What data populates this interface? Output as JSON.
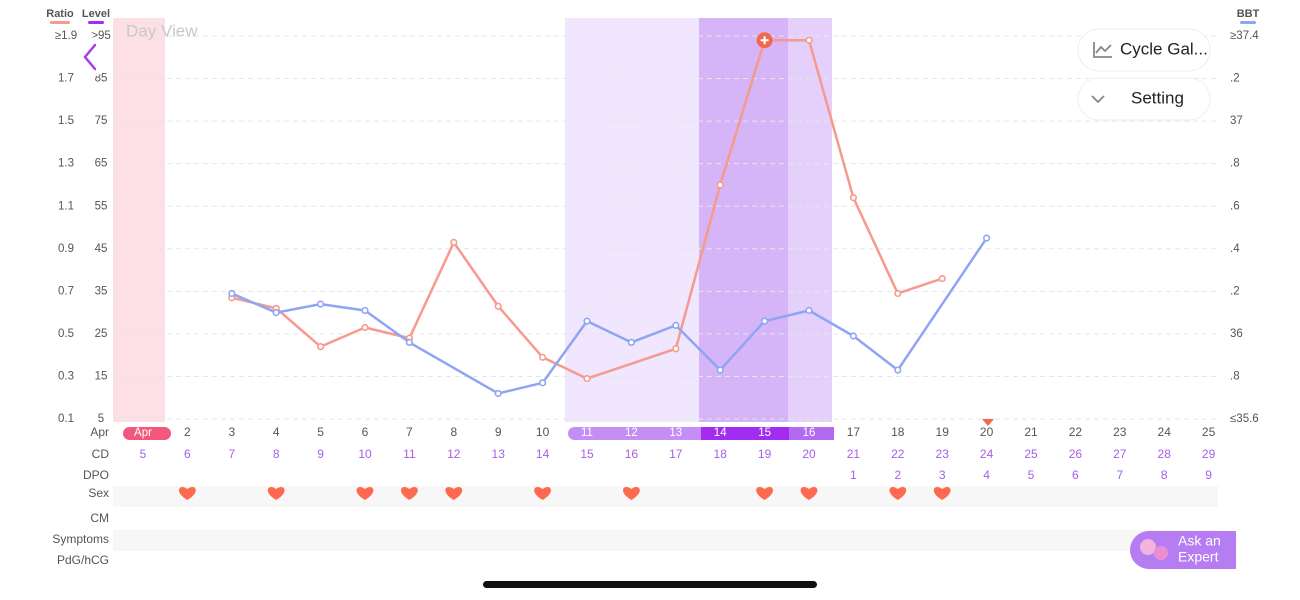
{
  "header": {
    "level_label": "Level",
    "view_label": "Day View"
  },
  "buttons": {
    "gallery": "Cycle Gal...",
    "setting": "Setting"
  },
  "ask_expert": {
    "line1": "Ask an",
    "line2": "Expert"
  },
  "chart_data": {
    "type": "line",
    "xlim": [
      1,
      25
    ],
    "ylim": [
      0.1,
      1.9
    ],
    "yticks": [
      0.1,
      0.3,
      0.5,
      0.7,
      0.9,
      1.1,
      1.3,
      1.5,
      1.7,
      {
        "value": 1.9,
        "label": "≥1.9"
      }
    ],
    "level_ylim": [
      5,
      95
    ],
    "level_yticks": [
      5,
      15,
      25,
      35,
      45,
      55,
      65,
      75,
      85,
      {
        "value": 95,
        "label": ">95"
      }
    ],
    "y2lim": [
      35.6,
      37.4
    ],
    "y2ticks": [
      {
        "value": 35.6,
        "label": "≤35.6"
      },
      {
        "value": 35.8,
        "label": ".8"
      },
      36,
      {
        "value": 36.2,
        "label": ".2"
      },
      {
        "value": 36.4,
        "label": ".4"
      },
      {
        "value": 36.6,
        "label": ".6"
      },
      {
        "value": 36.8,
        "label": ".8"
      },
      37,
      {
        "value": 37.2,
        "label": ".2"
      },
      {
        "value": 37.4,
        "label": "≥37.4"
      }
    ],
    "grid": true,
    "series": [
      {
        "name": "Ratio",
        "color": "#f59a8c",
        "x": [
          3,
          4,
          5,
          6,
          7,
          8,
          9,
          10,
          11,
          13,
          14,
          15,
          16,
          17,
          18,
          19
        ],
        "values": [
          0.67,
          0.62,
          0.44,
          0.53,
          0.48,
          0.93,
          0.63,
          0.39,
          0.29,
          0.43,
          1.2,
          1.88,
          1.88,
          1.14,
          0.69,
          0.76
        ]
      },
      {
        "name": "BBT",
        "color": "#8fa5f3",
        "axis": "y2",
        "x": [
          3,
          4,
          5,
          6,
          7,
          9,
          10,
          11,
          12,
          13,
          14,
          15,
          16,
          17,
          18,
          20
        ],
        "values": [
          36.19,
          36.1,
          36.14,
          36.11,
          35.96,
          35.72,
          35.77,
          36.06,
          35.96,
          36.04,
          35.83,
          36.06,
          36.11,
          35.99,
          35.83,
          36.45
        ]
      }
    ],
    "row_labels": [
      "Apr",
      "CD",
      "DPO",
      "Sex",
      "CM",
      "Symptoms",
      "PdG/hCG"
    ],
    "x_labels": [
      "Apr",
      2,
      3,
      4,
      5,
      6,
      7,
      8,
      9,
      10,
      11,
      12,
      13,
      14,
      15,
      16,
      17,
      18,
      19,
      20,
      21,
      22,
      23,
      24,
      25
    ],
    "cd": [
      5,
      6,
      7,
      8,
      9,
      10,
      11,
      12,
      13,
      14,
      15,
      16,
      17,
      18,
      19,
      20,
      21,
      22,
      23,
      24,
      25,
      26,
      27,
      28,
      29
    ],
    "dpo": [
      null,
      null,
      null,
      null,
      null,
      null,
      null,
      null,
      null,
      null,
      null,
      null,
      null,
      null,
      null,
      null,
      1,
      2,
      3,
      4,
      5,
      6,
      7,
      8,
      9
    ],
    "sex_days": [
      2,
      4,
      6,
      7,
      8,
      10,
      12,
      15,
      16,
      18,
      19
    ]
  }
}
